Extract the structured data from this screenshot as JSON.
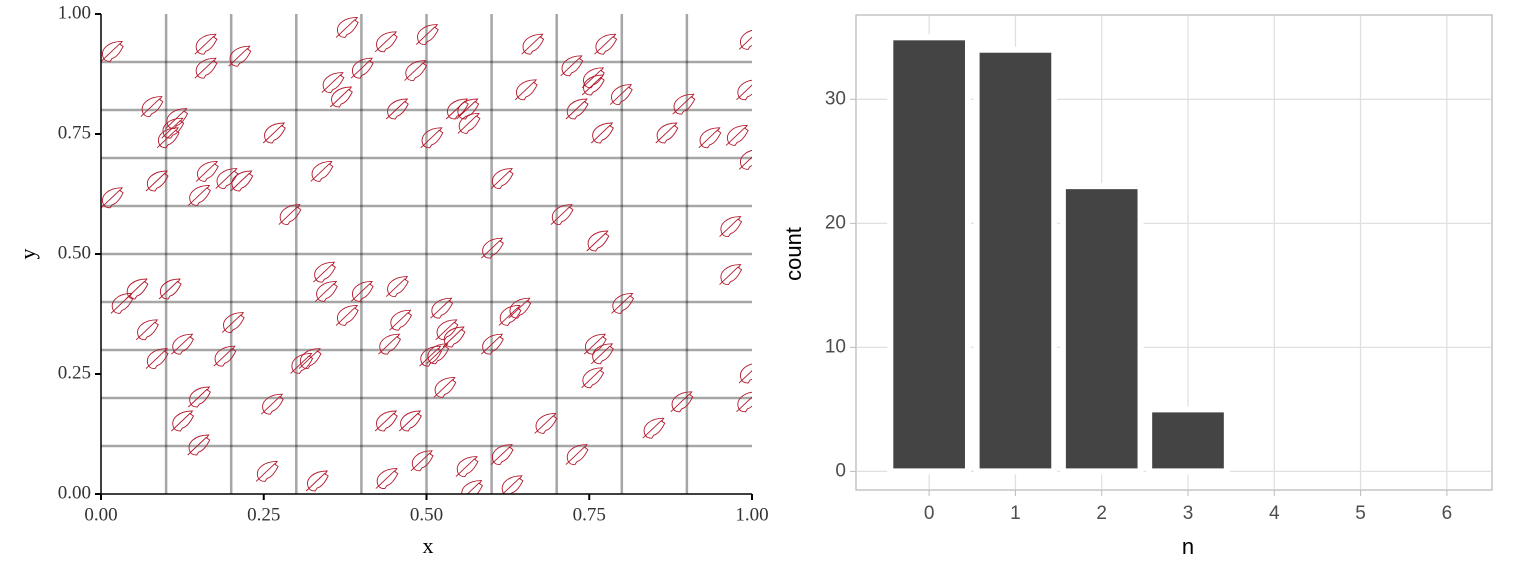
{
  "chart_data": [
    {
      "type": "scatter",
      "xlabel": "x",
      "ylabel": "y",
      "color": "#b2182b",
      "xlim": [
        0,
        1
      ],
      "ylim": [
        0,
        1
      ],
      "xticks": [
        {
          "value": 0,
          "label": "0.00"
        },
        {
          "value": 0.25,
          "label": "0.25"
        },
        {
          "value": 0.5,
          "label": "0.50"
        },
        {
          "value": 0.75,
          "label": "0.75"
        },
        {
          "value": 1,
          "label": "1.00"
        }
      ],
      "yticks": [
        {
          "value": 0,
          "label": "0.00"
        },
        {
          "value": 0.25,
          "label": "0.25"
        },
        {
          "value": 0.5,
          "label": "0.50"
        },
        {
          "value": 0.75,
          "label": "0.75"
        },
        {
          "value": 1,
          "label": "1.00"
        }
      ],
      "xgrid": [
        0.1,
        0.2,
        0.3,
        0.4,
        0.5,
        0.6,
        0.7,
        0.8,
        0.9
      ],
      "ygrid": [
        0.1,
        0.2,
        0.3,
        0.4,
        0.5,
        0.6,
        0.7,
        0.8,
        0.9
      ],
      "x": [
        0.014,
        0.158,
        0.158,
        0.21,
        0.375,
        0.435,
        0.498,
        0.66,
        0.772,
        0.72,
        0.48,
        0.398,
        0.353,
        0.366,
        0.753,
        0.753,
        0.796,
        0.65,
        0.994,
        0.99,
        0.075,
        0.113,
        0.107,
        0.1,
        0.263,
        0.452,
        0.544,
        0.56,
        0.562,
        0.505,
        0.728,
        0.767,
        0.892,
        0.866,
        0.932,
        0.974,
        0.994,
        0.014,
        0.083,
        0.16,
        0.148,
        0.19,
        0.213,
        0.336,
        0.287,
        0.613,
        0.705,
        0.598,
        0.76,
        0.964,
        0.964,
        0.34,
        0.343,
        0.398,
        0.452,
        0.052,
        0.029,
        0.103,
        0.068,
        0.083,
        0.122,
        0.2,
        0.187,
        0.375,
        0.457,
        0.44,
        0.52,
        0.528,
        0.539,
        0.514,
        0.503,
        0.305,
        0.318,
        0.598,
        0.64,
        0.625,
        0.756,
        0.767,
        0.752,
        0.798,
        0.525,
        0.994,
        0.99,
        0.148,
        0.122,
        0.147,
        0.26,
        0.435,
        0.472,
        0.68,
        0.889,
        0.846,
        0.728,
        0.613,
        0.49,
        0.559,
        0.436,
        0.252,
        0.329,
        0.566,
        0.628
      ],
      "y": [
        0.92,
        0.935,
        0.885,
        0.91,
        0.97,
        0.94,
        0.955,
        0.935,
        0.935,
        0.89,
        0.88,
        0.885,
        0.855,
        0.825,
        0.865,
        0.85,
        0.83,
        0.84,
        0.945,
        0.84,
        0.805,
        0.78,
        0.76,
        0.74,
        0.75,
        0.8,
        0.8,
        0.8,
        0.77,
        0.74,
        0.8,
        0.75,
        0.81,
        0.75,
        0.74,
        0.745,
        0.695,
        0.615,
        0.65,
        0.67,
        0.62,
        0.655,
        0.65,
        0.67,
        0.58,
        0.655,
        0.58,
        0.51,
        0.525,
        0.555,
        0.455,
        0.46,
        0.42,
        0.42,
        0.43,
        0.425,
        0.395,
        0.425,
        0.34,
        0.28,
        0.31,
        0.355,
        0.285,
        0.37,
        0.36,
        0.31,
        0.385,
        0.34,
        0.325,
        0.29,
        0.285,
        0.27,
        0.28,
        0.31,
        0.385,
        0.37,
        0.31,
        0.29,
        0.24,
        0.395,
        0.22,
        0.25,
        0.19,
        0.2,
        0.15,
        0.1,
        0.185,
        0.15,
        0.15,
        0.145,
        0.19,
        0.135,
        0.08,
        0.08,
        0.067,
        0.055,
        0.03,
        0.045,
        0.025,
        0.005,
        0.015
      ]
    },
    {
      "type": "bar",
      "xlabel": "n",
      "ylabel": "count",
      "color": "#444444",
      "categories": [
        "0",
        "1",
        "2",
        "3",
        "4",
        "5",
        "6"
      ],
      "values": [
        35,
        34,
        23,
        5,
        0,
        0,
        0
      ],
      "ylim": [
        -1.5,
        36.8
      ],
      "yticks": [
        0,
        10,
        20,
        30
      ],
      "grid": true
    }
  ]
}
